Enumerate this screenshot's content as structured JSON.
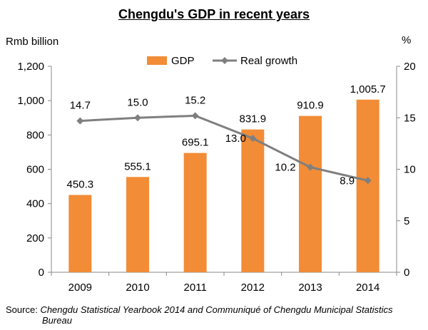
{
  "chart_data": {
    "type": "bar+line",
    "title": "Chengdu's GDP in recent years",
    "categories": [
      "2009",
      "2010",
      "2011",
      "2012",
      "2013",
      "2014"
    ],
    "series": [
      {
        "name": "GDP",
        "type": "bar",
        "axis": "left",
        "values": [
          450.3,
          555.1,
          695.1,
          831.9,
          910.9,
          1005.7
        ],
        "labels": [
          "450.3",
          "555.1",
          "695.1",
          "831.9",
          "910.9",
          "1,005.7"
        ],
        "color": "#F28C36"
      },
      {
        "name": "Real growth",
        "type": "line",
        "axis": "right",
        "values": [
          14.7,
          15.0,
          15.2,
          13.0,
          10.2,
          8.9
        ],
        "labels": [
          "14.7",
          "15.0",
          "15.2",
          "13.0",
          "10.2",
          "8.9"
        ],
        "color": "#7F7F7F"
      }
    ],
    "y_left": {
      "label": "Rmb billion",
      "lim": [
        0,
        1200
      ],
      "ticks": [
        0,
        200,
        400,
        600,
        800,
        1000,
        1200
      ],
      "tick_labels": [
        "0",
        "200",
        "400",
        "600",
        "800",
        "1,000",
        "1,200"
      ]
    },
    "y_right": {
      "label": "%",
      "lim": [
        0,
        20
      ],
      "ticks": [
        0,
        5,
        10,
        15,
        20
      ],
      "tick_labels": [
        "0",
        "5",
        "10",
        "15",
        "20"
      ]
    },
    "legend": "top-center",
    "grid": false
  },
  "source": {
    "label": "Source:",
    "text_line1": "Chengdu Statistical Yearbook 2014 and Communiqué of Chengdu Municipal Statistics",
    "text_line2": "Bureau"
  }
}
